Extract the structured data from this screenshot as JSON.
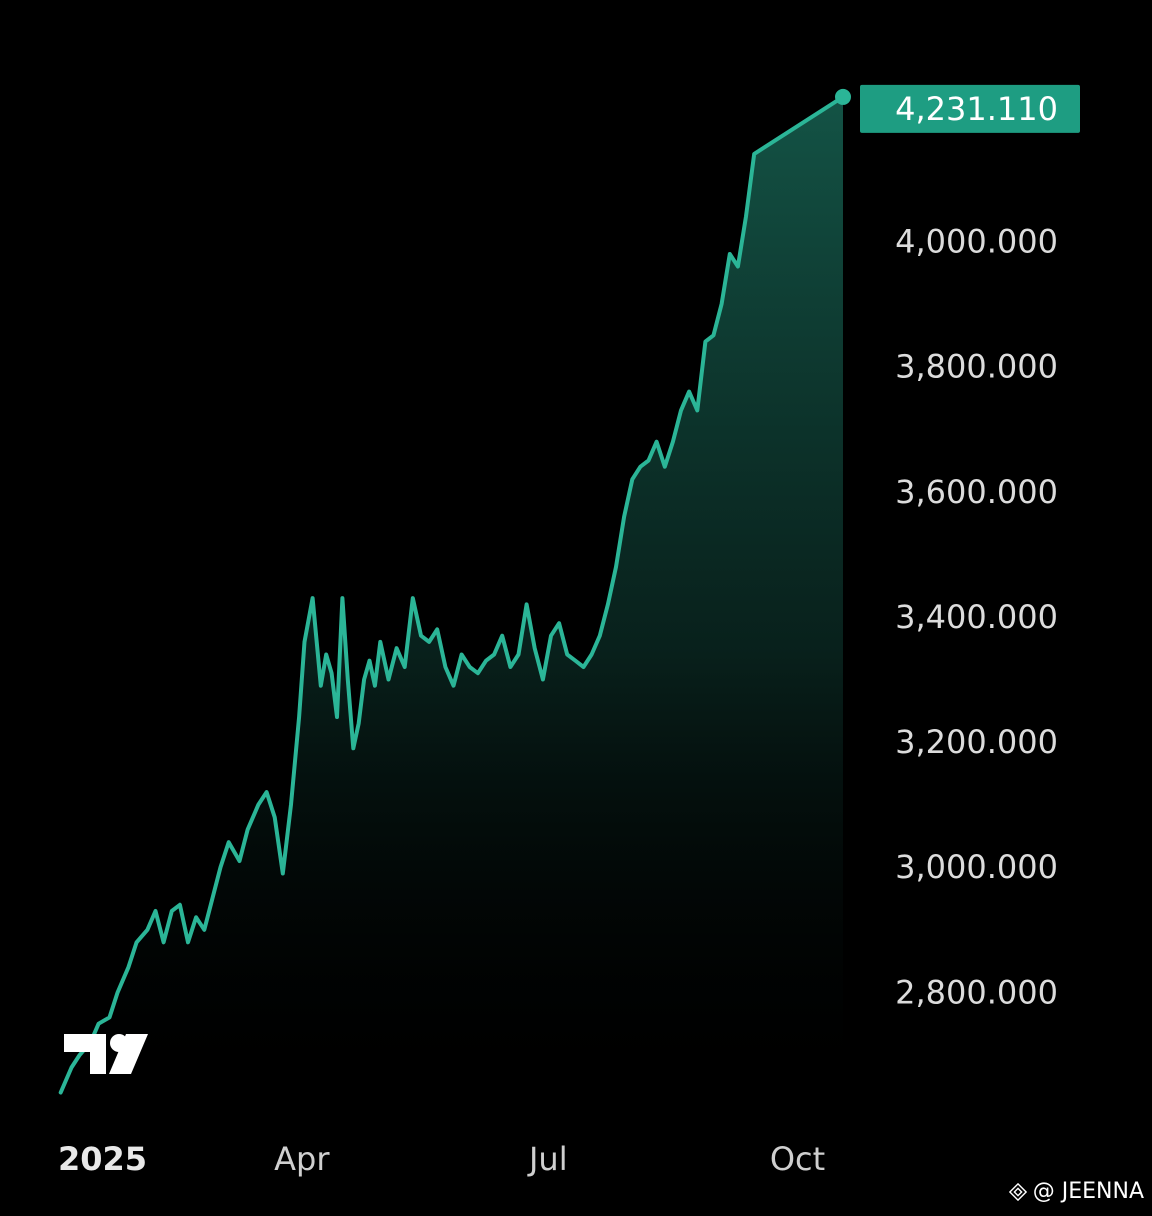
{
  "colors": {
    "background": "#000000",
    "line": "#2bb597",
    "fill_top": "#1a6f5d",
    "label_bg": "#1e9d82",
    "axis_text": "#dcdcdc"
  },
  "watermark": {
    "text": "@ JEENNA",
    "icon": "binance-diamond-icon"
  },
  "logo": {
    "icon": "tradingview-logo-icon"
  },
  "chart_data": {
    "type": "area",
    "xlabel": "",
    "ylabel": "",
    "x_domain": [
      "2025-01-01",
      "2025-10-13"
    ],
    "ylim": [
      2620,
      4290
    ],
    "x_ticks": [
      {
        "date": "2025-01-01",
        "label": "2025",
        "bold": true
      },
      {
        "date": "2025-04-01",
        "label": "Apr"
      },
      {
        "date": "2025-07-01",
        "label": "Jul"
      },
      {
        "date": "2025-10-01",
        "label": "Oct"
      }
    ],
    "y_ticks": [
      {
        "value": 2800,
        "label": "2,800.000"
      },
      {
        "value": 3000,
        "label": "3,000.000"
      },
      {
        "value": 3200,
        "label": "3,200.000"
      },
      {
        "value": 3400,
        "label": "3,400.000"
      },
      {
        "value": 3600,
        "label": "3,600.000"
      },
      {
        "value": 3800,
        "label": "3,800.000"
      },
      {
        "value": 4000,
        "label": "4,000.000"
      }
    ],
    "last_value_label": "4,231.110",
    "grid": false,
    "series": [
      {
        "x": [
          "2025-01-02",
          "2025-01-04",
          "2025-01-06",
          "2025-01-09",
          "2025-01-13",
          "2025-01-16",
          "2025-01-20",
          "2025-01-23",
          "2025-01-27",
          "2025-01-30",
          "2025-02-03",
          "2025-02-06",
          "2025-02-09",
          "2025-02-12",
          "2025-02-15",
          "2025-02-18",
          "2025-02-21",
          "2025-02-24",
          "2025-02-27",
          "2025-03-02",
          "2025-03-05",
          "2025-03-09",
          "2025-03-12",
          "2025-03-16",
          "2025-03-19",
          "2025-03-22",
          "2025-03-25",
          "2025-03-28",
          "2025-03-31",
          "2025-04-02",
          "2025-04-05",
          "2025-04-08",
          "2025-04-10",
          "2025-04-12",
          "2025-04-14",
          "2025-04-16",
          "2025-04-18",
          "2025-04-20",
          "2025-04-22",
          "2025-04-24",
          "2025-04-26",
          "2025-04-28",
          "2025-04-30",
          "2025-05-03",
          "2025-05-06",
          "2025-05-09",
          "2025-05-12",
          "2025-05-15",
          "2025-05-18",
          "2025-05-21",
          "2025-05-24",
          "2025-05-27",
          "2025-05-30",
          "2025-06-02",
          "2025-06-05",
          "2025-06-08",
          "2025-06-11",
          "2025-06-14",
          "2025-06-17",
          "2025-06-20",
          "2025-06-23",
          "2025-06-26",
          "2025-06-29",
          "2025-07-02",
          "2025-07-05",
          "2025-07-08",
          "2025-07-11",
          "2025-07-14",
          "2025-07-17",
          "2025-07-20",
          "2025-07-23",
          "2025-07-26",
          "2025-07-29",
          "2025-08-01",
          "2025-08-04",
          "2025-08-07",
          "2025-08-10",
          "2025-08-13",
          "2025-08-16",
          "2025-08-19",
          "2025-08-22",
          "2025-08-25",
          "2025-08-28",
          "2025-08-31",
          "2025-09-03",
          "2025-09-06",
          "2025-09-09",
          "2025-09-12",
          "2025-09-15",
          "2025-09-18",
          "2025-09-21",
          "2025-09-24",
          "2025-09-27",
          "2025-09-30",
          "2025-10-03",
          "2025-10-06",
          "2025-10-09",
          "2025-10-13"
        ],
        "y": [
          2640,
          2660,
          2680,
          2700,
          2720,
          2750,
          2760,
          2800,
          2840,
          2880,
          2900,
          2930,
          2880,
          2930,
          2940,
          2880,
          2920,
          2900,
          2950,
          3000,
          3040,
          3010,
          3060,
          3100,
          3120,
          3080,
          2990,
          3100,
          3240,
          3360,
          3430,
          3290,
          3340,
          3310,
          3240,
          3430,
          3300,
          3190,
          3230,
          3300,
          3330,
          3290,
          3360,
          3300,
          3350,
          3320,
          3430,
          3370,
          3360,
          3380,
          3320,
          3290,
          3340,
          3320,
          3310,
          3330,
          3340,
          3370,
          3320,
          3340,
          3420,
          3350,
          3300,
          3370,
          3390,
          3340,
          3330,
          3320,
          3340,
          3370,
          3420,
          3480,
          3560,
          3620,
          3640,
          3650,
          3680,
          3640,
          3680,
          3730,
          3760,
          3730,
          3840,
          3850,
          3900,
          3980,
          3960,
          4040,
          4140,
          4231,
          4231,
          4231,
          4231,
          4231,
          4231,
          4231,
          4231,
          4231
        ]
      }
    ]
  }
}
